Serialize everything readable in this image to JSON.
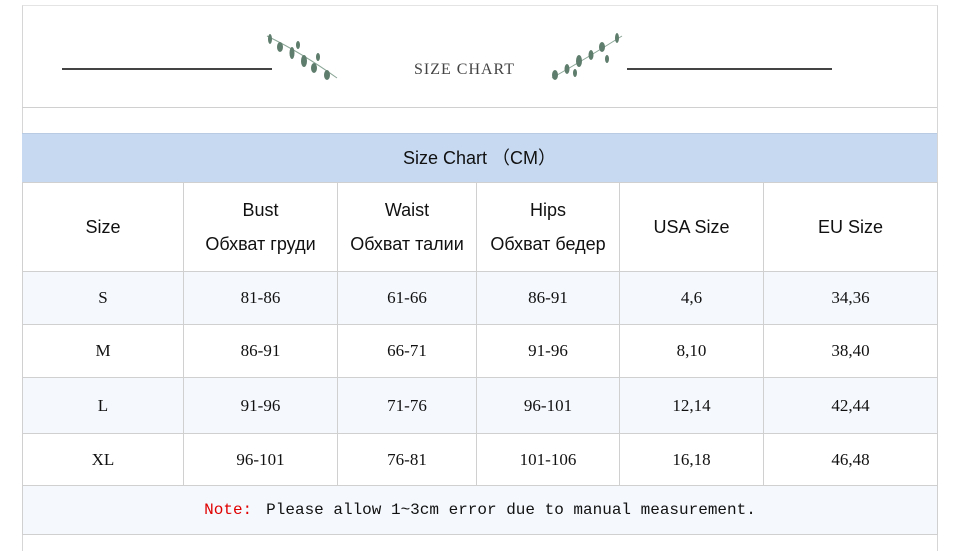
{
  "header": {
    "title": "SIZE  CHART",
    "leaf_color": "#5f7d6c"
  },
  "band": {
    "title": "Size Chart （CM）",
    "color": "#c6d9f1"
  },
  "columns": [
    {
      "en": "Size",
      "ru": ""
    },
    {
      "en": "Bust",
      "ru": "Обхват груди"
    },
    {
      "en": "Waist",
      "ru": "Обхват талии"
    },
    {
      "en": "Hips",
      "ru": "Обхват бедер"
    },
    {
      "en": "USA Size",
      "ru": ""
    },
    {
      "en": "EU Size",
      "ru": ""
    }
  ],
  "rows": [
    [
      "S",
      "81-86",
      "61-66",
      "86-91",
      "4,6",
      "34,36"
    ],
    [
      "M",
      "86-91",
      "66-71",
      "91-96",
      "8,10",
      "38,40"
    ],
    [
      "L",
      "91-96",
      "71-76",
      "96-101",
      "12,14",
      "42,44"
    ],
    [
      "XL",
      "96-101",
      "76-81",
      "101-106",
      "16,18",
      "46,48"
    ]
  ],
  "note": {
    "label": "Note:",
    "text": "Please allow 1~3cm error due to manual measurement.",
    "label_color": "#e00000"
  }
}
